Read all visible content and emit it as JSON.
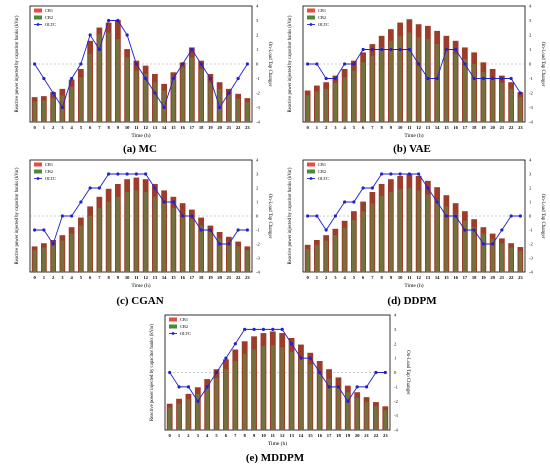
{
  "colors": {
    "cb1": "#9c3d2a",
    "cb2": "#6b7c3f",
    "oltc": "#2222cc",
    "cb1_legend": "#e74c3c",
    "cb2_legend": "#4a8a3a",
    "refline": "#999999"
  },
  "chart_data": [
    {
      "type": "bar",
      "caption": "(a) MC",
      "xlabel": "Time (h)",
      "ylabel": "Reactive power injected by capacitor banks (kVar)",
      "y2label": "On-Load Tap Changer",
      "y2lim": [
        -4,
        4
      ],
      "y2ticks": [
        "4",
        "3",
        "2",
        "1",
        "0",
        "-1",
        "-2",
        "-3",
        "-4"
      ],
      "legend": [
        "CB1",
        "CB2",
        "OLTC"
      ],
      "legend_position": "top-left",
      "categories": [
        "0",
        "1",
        "2",
        "3",
        "4",
        "5",
        "6",
        "7",
        "8",
        "9",
        "10",
        "11",
        "12",
        "13",
        "14",
        "15",
        "16",
        "17",
        "18",
        "19",
        "20",
        "21",
        "22",
        "23"
      ],
      "series": [
        {
          "name": "CB1",
          "values": [
            75,
            78,
            90,
            100,
            128,
            160,
            245,
            285,
            300,
            308,
            220,
            185,
            170,
            145,
            115,
            150,
            180,
            225,
            185,
            145,
            120,
            100,
            85,
            72
          ]
        },
        {
          "name": "CB2",
          "values": [
            62,
            65,
            72,
            80,
            105,
            135,
            205,
            265,
            270,
            250,
            195,
            155,
            145,
            120,
            95,
            130,
            165,
            195,
            160,
            120,
            100,
            82,
            70,
            60
          ]
        },
        {
          "name": "OLTC",
          "values": [
            0,
            -1,
            -2,
            -3,
            -1,
            0,
            2,
            1,
            3,
            3,
            2,
            0,
            -1,
            -2,
            -3,
            -1,
            0,
            1,
            0,
            -1,
            -3,
            -2,
            -1,
            0
          ]
        }
      ]
    },
    {
      "type": "bar",
      "caption": "(b) VAE",
      "xlabel": "Time (h)",
      "ylabel": "Reactive power injected by capacitor banks (kVar)",
      "y2label": "On-Load Tap Changer",
      "y2lim": [
        -4,
        4
      ],
      "y2ticks": [
        "4",
        "3",
        "2",
        "1",
        "0",
        "-1",
        "-2",
        "-3",
        "-4"
      ],
      "legend": [
        "CB1",
        "CB2",
        "OLTC"
      ],
      "legend_position": "top-left",
      "categories": [
        "0",
        "1",
        "2",
        "3",
        "4",
        "5",
        "6",
        "7",
        "8",
        "9",
        "10",
        "11",
        "12",
        "13",
        "14",
        "15",
        "16",
        "17",
        "18",
        "19",
        "20",
        "21",
        "22",
        "23"
      ],
      "series": [
        {
          "name": "CB1",
          "values": [
            95,
            110,
            120,
            140,
            160,
            185,
            210,
            235,
            260,
            280,
            300,
            310,
            295,
            290,
            275,
            260,
            245,
            225,
            210,
            180,
            160,
            140,
            120,
            90
          ]
        },
        {
          "name": "CB2",
          "values": [
            80,
            92,
            100,
            118,
            135,
            155,
            180,
            200,
            225,
            245,
            260,
            270,
            255,
            250,
            235,
            220,
            205,
            190,
            175,
            150,
            135,
            118,
            100,
            75
          ]
        },
        {
          "name": "OLTC",
          "values": [
            0,
            0,
            -1,
            -1,
            0,
            0,
            1,
            1,
            1,
            1,
            1,
            1,
            0,
            -1,
            -1,
            1,
            1,
            0,
            -1,
            -1,
            -1,
            -1,
            -1,
            -2
          ]
        }
      ]
    },
    {
      "type": "bar",
      "caption": "(c) CGAN",
      "xlabel": "Time (h)",
      "ylabel": "Reactive power injected by capacitor banks (kVar)",
      "y2label": "On-Load Tap Changer",
      "y2lim": [
        -4,
        4
      ],
      "y2ticks": [
        "4",
        "3",
        "2",
        "1",
        "0",
        "-1",
        "-2",
        "-3",
        "-4"
      ],
      "legend": [
        "CB1",
        "CB2",
        "OLTC"
      ],
      "legend_position": "top-left",
      "categories": [
        "0",
        "1",
        "2",
        "3",
        "4",
        "5",
        "6",
        "7",
        "8",
        "9",
        "10",
        "11",
        "12",
        "13",
        "14",
        "15",
        "16",
        "17",
        "18",
        "19",
        "20",
        "21",
        "22",
        "23"
      ],
      "series": [
        {
          "name": "CB1",
          "values": [
            80,
            90,
            100,
            115,
            140,
            170,
            205,
            235,
            260,
            275,
            290,
            295,
            290,
            275,
            255,
            235,
            215,
            195,
            170,
            145,
            125,
            110,
            95,
            80
          ]
        },
        {
          "name": "CB2",
          "values": [
            68,
            76,
            85,
            98,
            120,
            145,
            175,
            200,
            220,
            235,
            250,
            255,
            250,
            235,
            215,
            200,
            180,
            165,
            145,
            125,
            105,
            92,
            80,
            68
          ]
        },
        {
          "name": "OLTC",
          "values": [
            -1,
            -1,
            -2,
            0,
            0,
            1,
            2,
            2,
            3,
            3,
            3,
            3,
            3,
            2,
            1,
            1,
            0,
            0,
            -1,
            -1,
            -2,
            -2,
            -1,
            -1
          ]
        }
      ]
    },
    {
      "type": "bar",
      "caption": "(d) DDPM",
      "xlabel": "Time (h)",
      "ylabel": "Reactive power injected by capacitor banks (kVar)",
      "y2label": "On-Load Tap Changer",
      "y2lim": [
        -4,
        4
      ],
      "y2ticks": [
        "4",
        "3",
        "2",
        "1",
        "0",
        "-1",
        "-2",
        "-3",
        "-4"
      ],
      "legend": [
        "CB1",
        "CB2",
        "OLTC"
      ],
      "legend_position": "top-left",
      "categories": [
        "0",
        "1",
        "2",
        "3",
        "4",
        "5",
        "6",
        "7",
        "8",
        "9",
        "10",
        "11",
        "12",
        "13",
        "14",
        "15",
        "16",
        "17",
        "18",
        "19",
        "20",
        "21",
        "22",
        "23"
      ],
      "series": [
        {
          "name": "CB1",
          "values": [
            85,
            100,
            115,
            135,
            160,
            190,
            220,
            250,
            275,
            290,
            300,
            305,
            300,
            285,
            265,
            240,
            215,
            190,
            165,
            140,
            120,
            105,
            90,
            78
          ]
        },
        {
          "name": "CB2",
          "values": [
            72,
            85,
            98,
            115,
            138,
            162,
            190,
            215,
            238,
            250,
            260,
            262,
            255,
            242,
            225,
            205,
            182,
            160,
            140,
            120,
            102,
            90,
            76,
            66
          ]
        },
        {
          "name": "OLTC",
          "values": [
            0,
            0,
            -1,
            0,
            1,
            1,
            2,
            2,
            3,
            3,
            3,
            3,
            3,
            2,
            1,
            0,
            0,
            -1,
            -1,
            -2,
            -2,
            -1,
            0,
            0
          ]
        }
      ]
    },
    {
      "type": "bar",
      "caption": "(e) MDDPM",
      "xlabel": "Time (h)",
      "ylabel": "Reactive power injected by capacitor banks (kVar)",
      "y2label": "On-Load Tap Changer",
      "y2lim": [
        -4,
        4
      ],
      "y2ticks": [
        "4",
        "3",
        "2",
        "1",
        "0",
        "-1",
        "-2",
        "-3",
        "-4"
      ],
      "legend": [
        "CB1",
        "CB2",
        "OLTC"
      ],
      "legend_position": "top-left",
      "categories": [
        "0",
        "1",
        "2",
        "3",
        "4",
        "5",
        "6",
        "7",
        "8",
        "9",
        "10",
        "11",
        "12",
        "13",
        "14",
        "15",
        "16",
        "17",
        "18",
        "19",
        "20",
        "21",
        "22",
        "23"
      ],
      "series": [
        {
          "name": "CB1",
          "values": [
            80,
            95,
            110,
            130,
            155,
            185,
            215,
            245,
            270,
            285,
            295,
            300,
            295,
            280,
            260,
            235,
            210,
            185,
            160,
            135,
            115,
            100,
            85,
            72
          ]
        },
        {
          "name": "CB2",
          "values": [
            68,
            80,
            94,
            110,
            132,
            158,
            185,
            210,
            232,
            245,
            255,
            258,
            252,
            238,
            220,
            200,
            178,
            156,
            136,
            115,
            98,
            85,
            72,
            60
          ]
        },
        {
          "name": "OLTC",
          "values": [
            0,
            -1,
            -1,
            -2,
            -1,
            0,
            1,
            2,
            3,
            3,
            3,
            3,
            3,
            2,
            1,
            1,
            0,
            -1,
            -1,
            -2,
            -1,
            -1,
            0,
            0
          ]
        }
      ]
    }
  ]
}
